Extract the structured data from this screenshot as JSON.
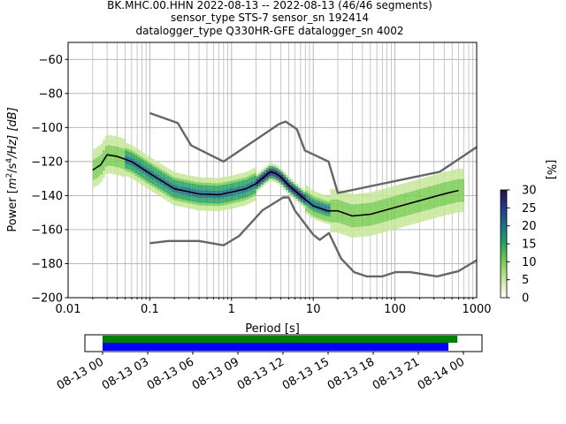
{
  "header": {
    "line1": "BK.MHC.00.HHN   2022-08-13 -- 2022-08-13  (46/46 segments)",
    "line2": "sensor_type STS-7 sensor_sn 192414",
    "line3": "datalogger_type Q330HR-GFE datalogger_sn 4002"
  },
  "chart_data": {
    "type": "heatmap",
    "title": "BK.MHC.00.HHN   2022-08-13 -- 2022-08-13  (46/46 segments)",
    "xlabel": "Period [s]",
    "ylabel": "Power [m²/s⁴/Hz] [dB]",
    "ylabel_parts": {
      "a": "Power [",
      "m": "m",
      "rest": "/s",
      "tail": "/Hz] [dB]",
      "e2": "2",
      "e4": "4"
    },
    "xscale": "log",
    "xlim": [
      0.01,
      1000
    ],
    "ylim": [
      -200,
      -50
    ],
    "xticks": [
      0.01,
      0.1,
      1,
      10,
      100,
      1000
    ],
    "xtick_labels": [
      "0.01",
      "0.1",
      "1",
      "10",
      "100",
      "1000"
    ],
    "yticks": [
      -200,
      -180,
      -160,
      -140,
      -120,
      -100,
      -80,
      -60
    ],
    "ytick_labels": [
      "−200",
      "−180",
      "−160",
      "−140",
      "−120",
      "−100",
      "−80",
      "−60"
    ],
    "grid": true,
    "colorbar": {
      "label": "[%]",
      "range": [
        0,
        30
      ],
      "ticks": [
        0,
        5,
        10,
        15,
        20,
        25,
        30
      ],
      "tick_labels": [
        "0",
        "5",
        "10",
        "15",
        "20",
        "25",
        "30"
      ],
      "colors": [
        "#ffffff",
        "#c6e89a",
        "#7ccd55",
        "#27a45e",
        "#19718a",
        "#243a8a",
        "#2c0d4a"
      ]
    },
    "series": [
      {
        "role": "mean",
        "color": "#000000",
        "x": [
          0.02,
          0.025,
          0.03,
          0.04,
          0.06,
          0.1,
          0.2,
          0.4,
          0.7,
          1,
          1.5,
          2,
          2.5,
          3,
          3.5,
          4,
          5,
          7,
          10,
          15,
          20,
          30,
          50,
          100,
          200,
          400,
          600
        ],
        "y": [
          -125,
          -122,
          -116,
          -117,
          -120,
          -127,
          -136,
          -139,
          -139.5,
          -138,
          -136,
          -133,
          -129,
          -126,
          -127,
          -129,
          -134,
          -140,
          -146,
          -149,
          -149,
          -152,
          -151,
          -147,
          -143,
          -139,
          -137
        ]
      },
      {
        "role": "high-noise-model",
        "color": "#666666",
        "x": [
          0.1,
          0.22,
          0.32,
          0.8,
          3.8,
          4.6,
          6.3,
          7.9,
          15.4,
          20,
          354.8,
          1000
        ],
        "y": [
          -91.5,
          -97.4,
          -110.5,
          -120,
          -98,
          -96.5,
          -101,
          -113.5,
          -120,
          -138.5,
          -126,
          -111.5
        ]
      },
      {
        "role": "low-noise-model",
        "color": "#666666",
        "x": [
          0.1,
          0.17,
          0.4,
          0.8,
          1.24,
          2.4,
          4.3,
          5,
          6,
          10,
          12,
          15.6,
          21.9,
          31.6,
          45,
          70,
          101,
          154,
          328,
          600,
          1000
        ],
        "y": [
          -168,
          -166.7,
          -166.7,
          -169.2,
          -163.7,
          -148.6,
          -141.1,
          -141.1,
          -149,
          -163,
          -166,
          -162,
          -177,
          -185,
          -187.5,
          -187.5,
          -185,
          -185,
          -187.5,
          -184.4,
          -178
        ]
      }
    ]
  },
  "timeline": {
    "start": "08-13 00",
    "end": "08-14 00",
    "tick_labels": [
      "08-13 00",
      "08-13 03",
      "08-13 06",
      "08-13 09",
      "08-13 12",
      "08-13 15",
      "08-13 18",
      "08-13 21",
      "08-14 00"
    ],
    "data_coverage": {
      "color": "#008000",
      "start_hour": 0,
      "end_hour": 23.6
    },
    "psd_coverage": {
      "color": "#0000ff",
      "start_hour": 0,
      "end_hour": 23.0
    }
  }
}
